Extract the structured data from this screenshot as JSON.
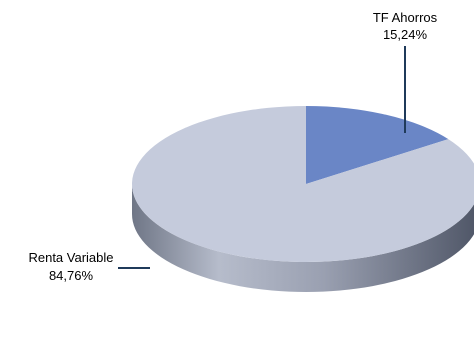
{
  "chart_data": {
    "type": "pie",
    "style": "3d",
    "title": "",
    "slices": [
      {
        "label": "Renta Variable",
        "value": 84.76,
        "value_label": "84,76%",
        "color": "#c5cbdc",
        "side_color": "#8c93a6"
      },
      {
        "label": "TF Ahorros",
        "value": 15.24,
        "value_label": "15,24%",
        "color": "#6a86c6",
        "side_color": "#4a5f8f"
      }
    ],
    "leader_color": "#1f3a5a",
    "legend": "none"
  }
}
